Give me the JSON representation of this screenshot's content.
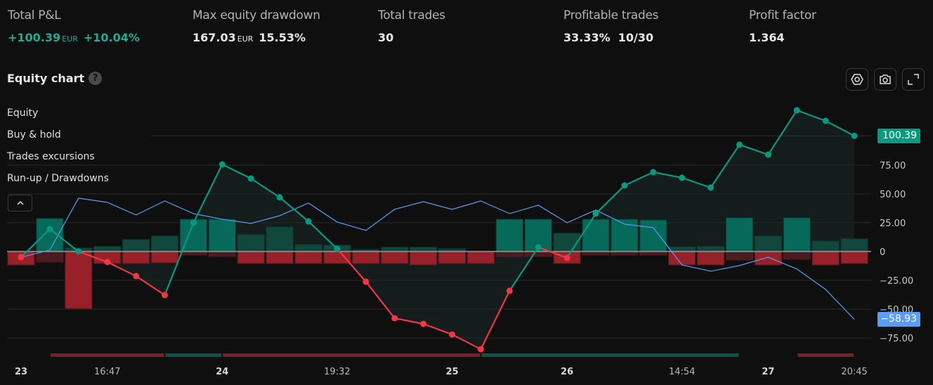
{
  "stats": [
    {
      "label": "Total P&L",
      "value": "+100.39",
      "currency": "EUR",
      "percent": "+10.04%",
      "positive": true
    },
    {
      "label": "Max equity drawdown",
      "value": "167.03",
      "currency": "EUR",
      "percent": "15.53%",
      "positive": false
    },
    {
      "label": "Total trades",
      "value": "30"
    },
    {
      "label": "Profitable trades",
      "value": "33.33%  10/30"
    },
    {
      "label": "Profit factor",
      "value": "1.364"
    }
  ],
  "equity_chart": {
    "title": "Equity chart",
    "help_icon": "?",
    "toolbar": [
      "settings-icon",
      "camera-icon",
      "fullscreen-icon"
    ]
  },
  "legend": [
    "Equity",
    "Buy & hold",
    "Trades excursions",
    "Run-up / Drawdowns"
  ],
  "colors": {
    "green": "#089981",
    "red": "#f23645",
    "blue": "#5b9cf6",
    "bg": "#0f0f0f"
  },
  "chart_data": {
    "type": "line",
    "yticks": [
      75,
      50,
      25,
      0,
      -25,
      -50,
      -75
    ],
    "ytick_labels": [
      "75.00",
      "50.00",
      "25.00",
      "0",
      "−25.00",
      "−50.00",
      "−75.00"
    ],
    "ylim": [
      -90,
      125
    ],
    "xticks": [
      {
        "i": 0,
        "label": "23",
        "bold": true
      },
      {
        "i": 3,
        "label": "16:47"
      },
      {
        "i": 7,
        "label": "24",
        "bold": true
      },
      {
        "i": 11,
        "label": "19:32"
      },
      {
        "i": 15,
        "label": "25",
        "bold": true
      },
      {
        "i": 19,
        "label": "26",
        "bold": true
      },
      {
        "i": 23,
        "label": "14:54"
      },
      {
        "i": 26,
        "label": "27",
        "bold": true
      },
      {
        "i": 29,
        "label": "20:45"
      }
    ],
    "equity": [
      -4.9,
      19.5,
      0,
      -9.1,
      -21.3,
      -37.8,
      25,
      75.6,
      63.4,
      47,
      26.2,
      2.4,
      -26.2,
      -57.9,
      -62.8,
      -72,
      -84.8,
      -34.1,
      3.7,
      -5.5,
      32.9,
      57.3,
      68.9,
      64,
      55.5,
      92.7,
      84.1,
      122.6,
      113.4,
      100.39
    ],
    "buy_hold": [
      -4.9,
      1.2,
      46.3,
      42.7,
      31.7,
      43.9,
      32.9,
      28,
      24.4,
      31.1,
      42.1,
      25.6,
      18.3,
      36.6,
      43.3,
      36.6,
      43.9,
      32.9,
      40.2,
      25,
      36,
      23.8,
      20.7,
      -11.6,
      -17.1,
      -12.2,
      -4.9,
      -15.2,
      -32.9,
      -58.93
    ],
    "runup": [
      0,
      28.7,
      3,
      4.3,
      10.4,
      13.4,
      28,
      28,
      14.6,
      21.3,
      6,
      5.5,
      1.8,
      3.7,
      3.7,
      2.4,
      0,
      28,
      28,
      15.9,
      28,
      28,
      27.4,
      4,
      4.3,
      29.3,
      13.4,
      29.3,
      9.1,
      11
    ],
    "drawdown": [
      -11.6,
      -9.1,
      -49.4,
      -10.4,
      -10.4,
      -9.8,
      -3,
      -4.3,
      -10.4,
      -10.4,
      -10.4,
      -10.4,
      -10.4,
      -10.4,
      -11.6,
      -10.4,
      -10.4,
      -4.3,
      -4.3,
      -10.4,
      -3,
      -3,
      -3,
      -11.6,
      -11.6,
      -7.3,
      -11.6,
      -6.7,
      -11.6,
      -10.4
    ],
    "winning": [
      false,
      true,
      false,
      false,
      false,
      false,
      true,
      true,
      false,
      false,
      false,
      false,
      false,
      false,
      false,
      false,
      false,
      true,
      true,
      false,
      true,
      true,
      true,
      false,
      false,
      true,
      false,
      true,
      false,
      false
    ],
    "period_strip": [
      {
        "from": 1,
        "to": 5,
        "type": "drawdown"
      },
      {
        "from": 5,
        "to": 7,
        "type": "runup"
      },
      {
        "from": 7,
        "to": 16,
        "type": "drawdown"
      },
      {
        "from": 16,
        "to": 25,
        "type": "runup"
      },
      {
        "from": 27,
        "to": 29,
        "type": "drawdown"
      }
    ],
    "last_equity_label": "100.39",
    "last_buy_hold_label": "−58.93"
  }
}
